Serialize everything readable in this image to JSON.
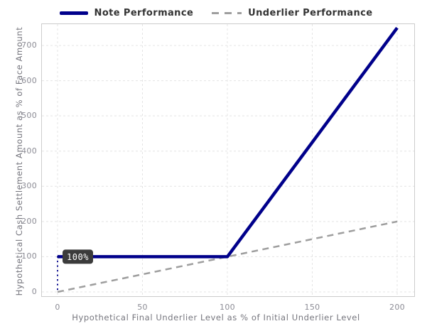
{
  "legend": {
    "items": [
      {
        "label": "Note Performance",
        "swatch": "solid-navy-line"
      },
      {
        "label": "Underlier Performance",
        "swatch": "dashed-gray-line"
      }
    ]
  },
  "annotation": {
    "label": "100%"
  },
  "colors": {
    "note_line": "#00008B",
    "underlier_line": "#9e9e9e",
    "grid": "#e4e4e4",
    "plot_border": "#cccccc",
    "annotation_bg": "#3b3b3b",
    "annotation_text": "#ffffff"
  },
  "chart_data": {
    "type": "line",
    "title": "",
    "xlabel": "Hypothetical Final Underlier Level as % of Initial Underlier Level",
    "ylabel": "Hypothetical Cash Settlement Amount as % of Face Amount",
    "xticks": [
      0,
      50,
      100,
      150,
      200
    ],
    "yticks": [
      0,
      100,
      200,
      300,
      400,
      500,
      600,
      700
    ],
    "xlim": [
      -9.6,
      234.7
    ],
    "ylim": [
      -14.1,
      762
    ],
    "grid": true,
    "legend_position": "top-center",
    "series": [
      {
        "name": "Note Performance",
        "x": [
          0,
          100,
          200
        ],
        "y": [
          100,
          100,
          750
        ],
        "color": "#00008B",
        "dash": "solid",
        "width": 4.5
      },
      {
        "name": "Underlier Performance",
        "x": [
          0,
          200
        ],
        "y": [
          0,
          200
        ],
        "color": "#9e9e9e",
        "dash": "dashed",
        "width": 2.5
      }
    ],
    "annotations": [
      {
        "text": "100%",
        "x": 0,
        "y": 100,
        "drop_line_to_y": 0
      }
    ]
  }
}
